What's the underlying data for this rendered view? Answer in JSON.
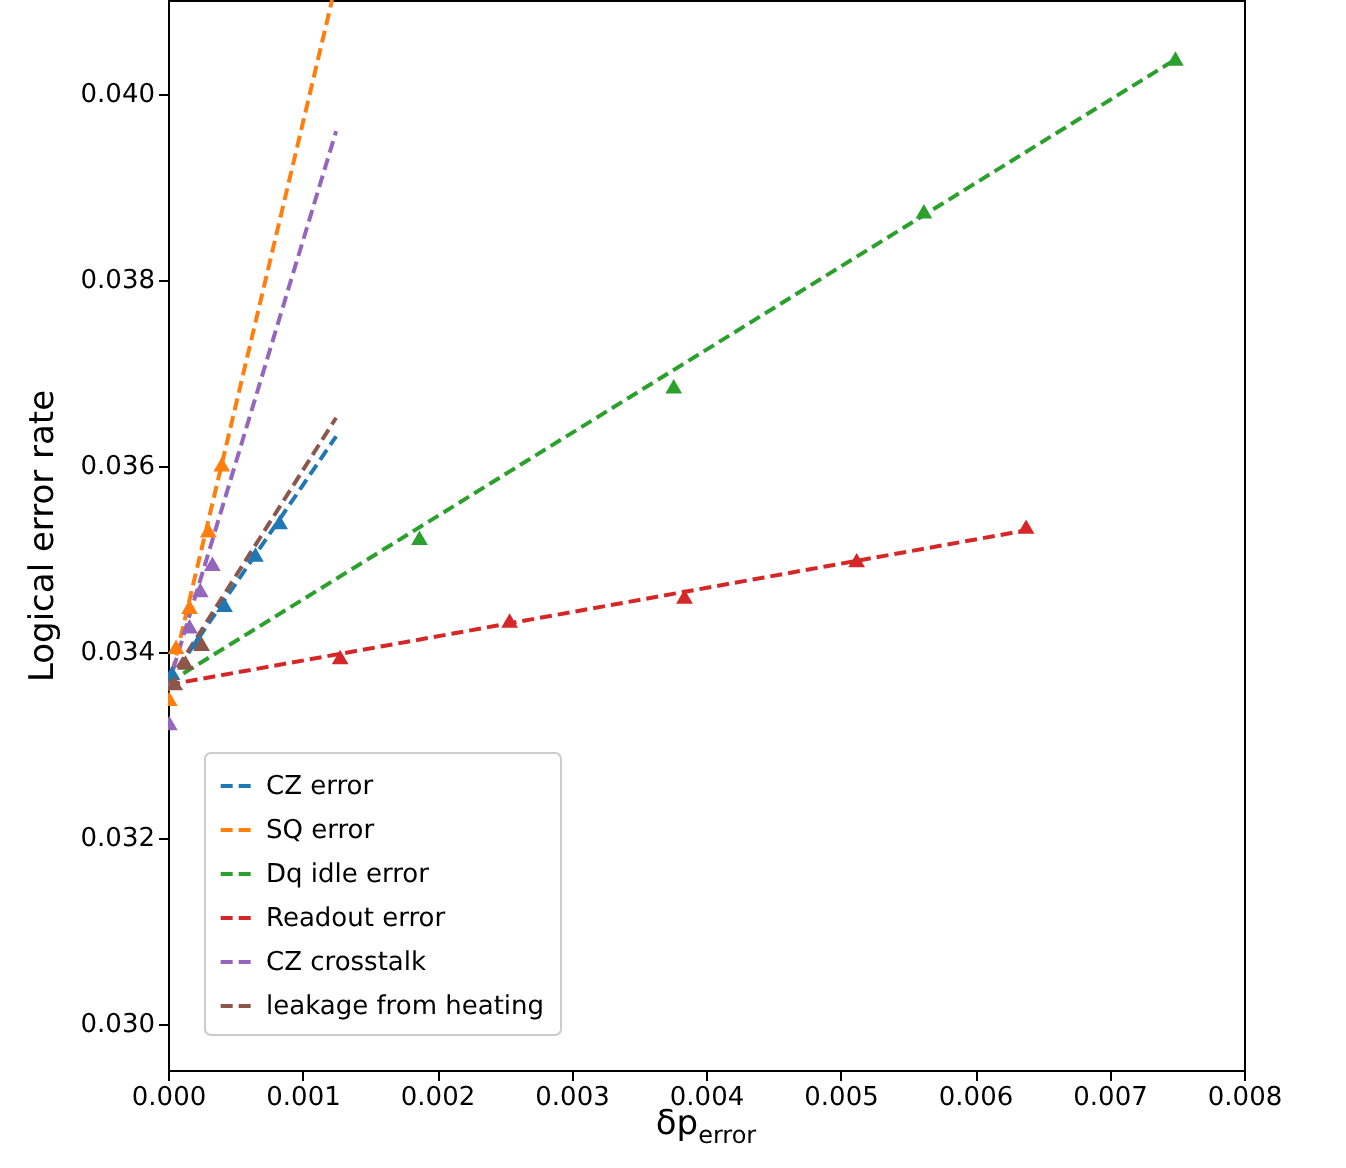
{
  "chart_data": {
    "type": "scatter",
    "xlabel": "δp$_{error}$",
    "ylabel": "Logical error rate",
    "xlim": [
      0,
      0.008
    ],
    "ylim": [
      0.0295,
      0.041
    ],
    "xticks": [
      {
        "value": 0,
        "label": "0.000"
      },
      0.001,
      0.002,
      0.003,
      0.004,
      0.005,
      0.006,
      0.007,
      {
        "value": 0.008,
        "label": "0.008"
      }
    ],
    "yticks": [
      {
        "value": 0.03,
        "label": "0.030"
      },
      0.032,
      0.034,
      0.036,
      0.038,
      {
        "value": 0.04,
        "label": "0.040"
      }
    ],
    "grid": false,
    "legend": "bottom left",
    "marker": "triangle",
    "line_style": "dashed",
    "series": [
      {
        "type": "line",
        "name": "CZ error",
        "color": "#1f77b4",
        "marker": "none",
        "x": [
          0,
          0.00125
        ],
        "values": [
          0.03366,
          0.03631
        ]
      },
      {
        "type": "line",
        "name": "SQ error",
        "color": "#ff7f0e",
        "marker": "none",
        "x": [
          0,
          0.00122
        ],
        "values": [
          0.03358,
          0.041
        ]
      },
      {
        "type": "line",
        "name": "Dq idle error",
        "color": "#2ca02c",
        "marker": "none",
        "x": [
          0,
          0.0075
        ],
        "values": [
          0.03366,
          0.04037
        ]
      },
      {
        "type": "line",
        "name": "Readout error",
        "color": "#d62728",
        "marker": "none",
        "x": [
          0,
          0.00638
        ],
        "values": [
          0.03364,
          0.0353
        ]
      },
      {
        "type": "line",
        "name": "CZ crosstalk",
        "color": "#9467bd",
        "marker": "none",
        "x": [
          0,
          0.00125
        ],
        "values": [
          0.03362,
          0.03959
        ]
      },
      {
        "type": "line",
        "name": "leakage from heating",
        "color": "#8c564b",
        "marker": "none",
        "x": [
          0,
          0.00125
        ],
        "values": [
          0.03366,
          0.03651
        ]
      },
      {
        "type": "scatter",
        "color": "#1f77b4",
        "x": [
          3e-05,
          0.00022,
          0.00042,
          0.00065,
          0.00083
        ],
        "values": [
          0.03377,
          0.0341,
          0.0345,
          0.03504,
          0.03539
        ]
      },
      {
        "type": "scatter",
        "color": "#ff7f0e",
        "x": [
          1e-05,
          6e-05,
          0.00016,
          0.0003,
          0.0004
        ],
        "values": [
          0.03349,
          0.03405,
          0.03448,
          0.0353,
          0.03601
        ]
      },
      {
        "type": "scatter",
        "color": "#2ca02c",
        "x": [
          0.00187,
          0.00376,
          0.00562,
          0.00749
        ],
        "values": [
          0.03522,
          0.03685,
          0.03873,
          0.04037
        ]
      },
      {
        "type": "scatter",
        "color": "#d62728",
        "x": [
          0.00128,
          0.00254,
          0.00384,
          0.00512,
          0.00638
        ],
        "values": [
          0.03394,
          0.03433,
          0.03459,
          0.03498,
          0.03534
        ]
      },
      {
        "type": "scatter",
        "color": "#9467bd",
        "x": [
          1e-05,
          0.00016,
          0.00024,
          0.00033
        ],
        "values": [
          0.03323,
          0.03427,
          0.03466,
          0.03494
        ]
      },
      {
        "type": "scatter",
        "color": "#8c564b",
        "x": [
          5e-05,
          0.00013,
          0.00025
        ],
        "values": [
          0.03366,
          0.03388,
          0.03408
        ]
      }
    ]
  }
}
